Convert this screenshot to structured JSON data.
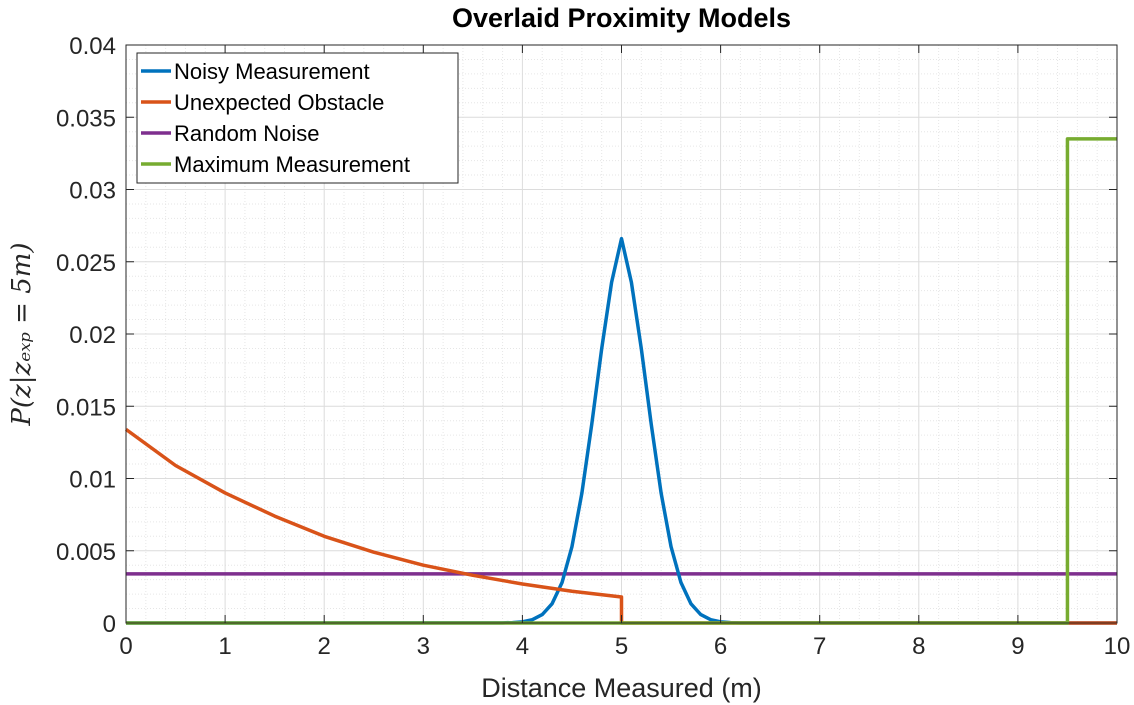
{
  "chart_data": {
    "type": "line",
    "title": "Overlaid Proximity Models",
    "xlabel": "Distance Measured (m)",
    "ylabel": "P(z|z_exp = 5m)",
    "ylabel_display": "P(z|zₑₓₚ = 5m)",
    "xlim": [
      0,
      10
    ],
    "ylim": [
      0,
      0.04
    ],
    "x_ticks": [
      0,
      1,
      2,
      3,
      4,
      5,
      6,
      7,
      8,
      9,
      10
    ],
    "x_tick_labels": [
      "0",
      "1",
      "2",
      "3",
      "4",
      "5",
      "6",
      "7",
      "8",
      "9",
      "10"
    ],
    "y_ticks": [
      0,
      0.005,
      0.01,
      0.015,
      0.02,
      0.025,
      0.03,
      0.035,
      0.04
    ],
    "y_tick_labels": [
      "0",
      "0.005",
      "0.01",
      "0.015",
      "0.02",
      "0.025",
      "0.03",
      "0.035",
      "0.04"
    ],
    "grid": true,
    "minor_grid": true,
    "legend_position": "top-left",
    "series": [
      {
        "name": "Noisy Measurement",
        "color": "#0072BD",
        "x": [
          0,
          3.8,
          3.9,
          4.0,
          4.1,
          4.2,
          4.3,
          4.4,
          4.5,
          4.6,
          4.7,
          4.8,
          4.9,
          5.0,
          5.1,
          5.2,
          5.3,
          5.4,
          5.5,
          5.6,
          5.7,
          5.8,
          5.9,
          6.0,
          6.1,
          6.2,
          10
        ],
        "y": [
          0,
          1e-05,
          3e-05,
          8e-05,
          0.00023,
          0.00058,
          0.00134,
          0.0028,
          0.00528,
          0.00898,
          0.01376,
          0.01898,
          0.02357,
          0.0266,
          0.02357,
          0.01898,
          0.01376,
          0.00898,
          0.00528,
          0.0028,
          0.00134,
          0.00058,
          0.00023,
          8e-05,
          3e-05,
          1e-05,
          0
        ]
      },
      {
        "name": "Unexpected Obstacle",
        "color": "#D95319",
        "x": [
          0,
          0.5,
          1.0,
          1.5,
          2.0,
          2.5,
          3.0,
          3.5,
          4.0,
          4.5,
          5.0,
          5.0,
          10
        ],
        "y": [
          0.0134,
          0.0109,
          0.009,
          0.0074,
          0.006,
          0.0049,
          0.004,
          0.0033,
          0.0027,
          0.0022,
          0.0018,
          0,
          0
        ]
      },
      {
        "name": "Random Noise",
        "color": "#7E2F8E",
        "x": [
          0,
          10
        ],
        "y": [
          0.0034,
          0.0034
        ]
      },
      {
        "name": "Maximum Measurement",
        "color": "#77AC30",
        "x": [
          0,
          9.5,
          9.5,
          10
        ],
        "y": [
          0,
          0,
          0.0335,
          0.0335
        ]
      }
    ]
  }
}
